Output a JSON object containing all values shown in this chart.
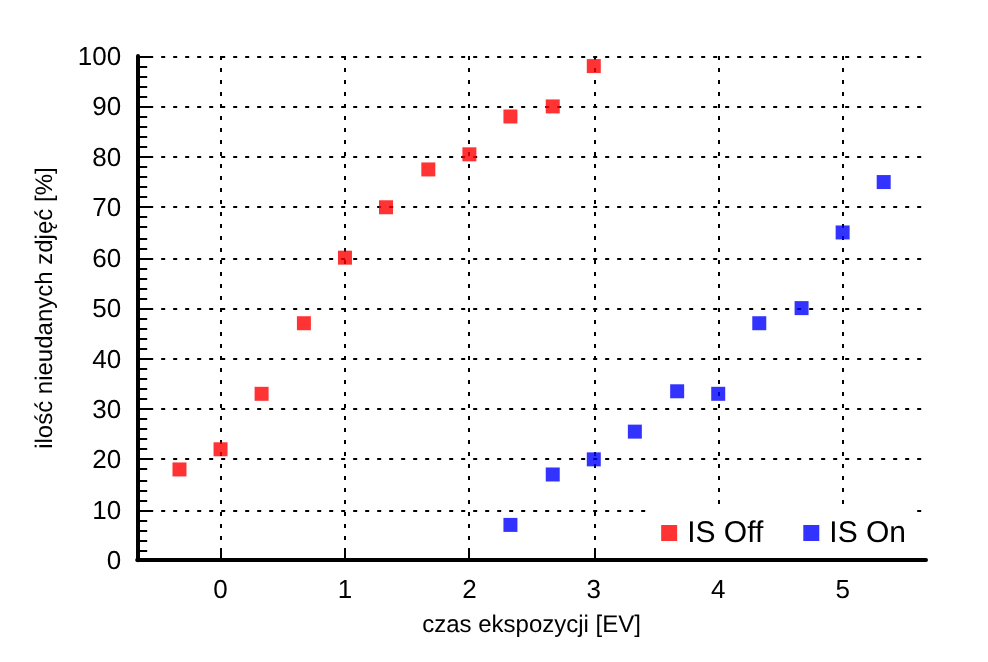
{
  "chart_data": {
    "type": "scatter",
    "xlabel": "czas ekspozycji [EV]",
    "ylabel": "ilość nieudanych zdjęć [%]",
    "xlim": [
      -0.67,
      5.67
    ],
    "xticks": [
      0,
      1,
      2,
      3,
      4,
      5
    ],
    "ylim": [
      0,
      100
    ],
    "yticks": [
      0,
      10,
      20,
      30,
      40,
      50,
      60,
      70,
      80,
      90,
      100
    ],
    "grid": true,
    "legend": "bottom right",
    "marker": "square",
    "series": [
      {
        "name": "IS Off",
        "color": "#ff0000",
        "x": [
          -0.33,
          0,
          0.33,
          0.67,
          1,
          1.33,
          1.67,
          2,
          2.33,
          2.67,
          3
        ],
        "values": [
          18,
          22,
          33,
          47,
          60,
          70,
          77.5,
          80.5,
          88,
          90,
          98
        ]
      },
      {
        "name": "IS On",
        "color": "#0000ff",
        "x": [
          2.33,
          2.67,
          3,
          3.33,
          3.67,
          4,
          4.33,
          4.67,
          5,
          5.33
        ],
        "values": [
          7,
          17,
          20,
          25.5,
          33.5,
          33,
          47,
          50,
          65,
          75
        ]
      }
    ]
  }
}
